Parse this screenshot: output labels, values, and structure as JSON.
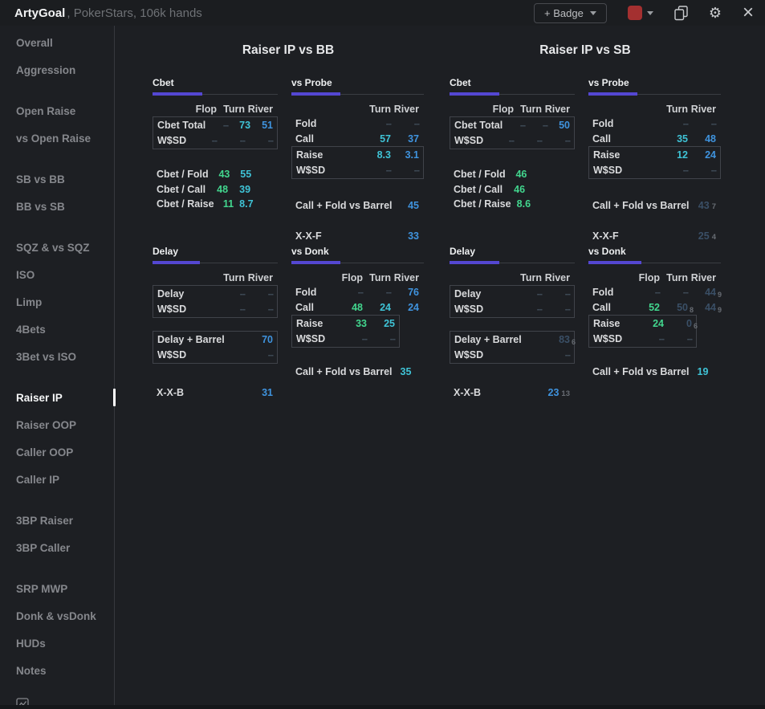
{
  "app": {
    "title": "ArtyGoal",
    "subtitle": ", PokerStars, 106k hands"
  },
  "topbar": {
    "badge_label": "+ Badge",
    "swatch_color": "#a43030",
    "gear_glyph": "⚙",
    "close_glyph": "×"
  },
  "colors": {
    "flop": "#42d68e",
    "turn": "#3fc3d6",
    "river": "#3f93de",
    "dash": "#3d4955",
    "dim": "#3a4f66",
    "sub": "#676c73"
  },
  "sidebar": {
    "active": "Raiser IP",
    "groups": [
      [
        "Overall",
        "Aggression"
      ],
      [
        "Open Raise",
        "vs Open Raise"
      ],
      [
        "SB vs BB",
        "BB vs SB"
      ],
      [
        "SQZ & vs SQZ",
        "ISO",
        "Limp",
        "4Bets",
        "3Bet vs ISO"
      ],
      [
        "Raiser IP",
        "Raiser OOP",
        "Caller OOP",
        "Caller IP"
      ],
      [
        "3BP Raiser",
        "3BP Caller"
      ],
      [
        "SRP MWP",
        "Donk & vsDonk",
        "HUDs",
        "Notes"
      ]
    ]
  },
  "panels": [
    {
      "title": "Raiser IP vs BB",
      "sections": [
        {
          "title": "Cbet",
          "bar_percent": 40,
          "columns": [
            "Flop",
            "Turn",
            "River"
          ],
          "blocks": [
            {
              "type": "box",
              "rows": [
                {
                  "label": "Cbet Total",
                  "cells": [
                    {
                      "v": "--",
                      "c": "dash"
                    },
                    {
                      "v": "73",
                      "c": "turn"
                    },
                    {
                      "v": "51",
                      "c": "river"
                    }
                  ]
                },
                {
                  "label": "W$SD",
                  "cells": [
                    {
                      "v": "--",
                      "c": "dash"
                    },
                    {
                      "v": "--",
                      "c": "dash"
                    },
                    {
                      "v": "--",
                      "c": "dash"
                    }
                  ]
                }
              ]
            },
            {
              "type": "plain",
              "gap": 22,
              "rows": [
                {
                  "label": "Cbet / Fold",
                  "cells": [
                    {
                      "v": "43",
                      "c": "flop"
                    },
                    {
                      "v": "55",
                      "c": "turn"
                    },
                    null
                  ]
                },
                {
                  "label": "Cbet / Call",
                  "cells": [
                    {
                      "v": "48",
                      "c": "flop"
                    },
                    {
                      "v": "39",
                      "c": "turn"
                    },
                    null
                  ]
                },
                {
                  "label": "Cbet / Raise",
                  "cells": [
                    {
                      "v": "11",
                      "c": "flop"
                    },
                    {
                      "v": "8.7",
                      "c": "turn"
                    },
                    null
                  ]
                }
              ]
            }
          ]
        },
        {
          "title": "vs Probe",
          "bar_percent": 37,
          "columns": [
            "Turn",
            "River"
          ],
          "blocks": [
            {
              "type": "plain",
              "rows": [
                {
                  "label": "Fold",
                  "cells": [
                    {
                      "v": "--",
                      "c": "dash"
                    },
                    {
                      "v": "--",
                      "c": "dash"
                    }
                  ]
                },
                {
                  "label": "Call",
                  "cells": [
                    {
                      "v": "57",
                      "c": "turn"
                    },
                    {
                      "v": "37",
                      "c": "river"
                    }
                  ]
                }
              ]
            },
            {
              "type": "box",
              "rows": [
                {
                  "label": "Raise",
                  "cells": [
                    {
                      "v": "8.3",
                      "c": "turn"
                    },
                    {
                      "v": "3.1",
                      "c": "river"
                    }
                  ]
                },
                {
                  "label": "W$SD",
                  "cells": [
                    {
                      "v": "--",
                      "c": "dash"
                    },
                    {
                      "v": "--",
                      "c": "dash"
                    }
                  ]
                }
              ]
            },
            {
              "type": "summary",
              "gap": 23,
              "label": "Call + Fold vs Barrel",
              "value": {
                "v": "45",
                "c": "river"
              }
            },
            {
              "type": "summary",
              "gap": 19,
              "label": "X-X-F",
              "value": {
                "v": "33",
                "c": "river"
              }
            }
          ]
        },
        {
          "title": "Delay",
          "bar_percent": 38,
          "columns": [
            "Turn",
            "River"
          ],
          "blocks": [
            {
              "type": "box",
              "rows": [
                {
                  "label": "Delay",
                  "cells": [
                    {
                      "v": "--",
                      "c": "dash"
                    },
                    {
                      "v": "--",
                      "c": "dash"
                    }
                  ]
                },
                {
                  "label": "W$SD",
                  "cells": [
                    {
                      "v": "--",
                      "c": "dash"
                    },
                    {
                      "v": "--",
                      "c": "dash"
                    }
                  ]
                }
              ]
            },
            {
              "type": "box",
              "gap": 16,
              "rows": [
                {
                  "label": "Delay + Barrel",
                  "cells": [
                    null,
                    {
                      "v": "70",
                      "c": "river"
                    }
                  ]
                },
                {
                  "label": "W$SD",
                  "cells": [
                    null,
                    {
                      "v": "--",
                      "c": "dash"
                    }
                  ]
                }
              ]
            },
            {
              "type": "summary",
              "gap": 26,
              "label": "X-X-B",
              "value": {
                "v": "31",
                "c": "river"
              }
            }
          ]
        },
        {
          "title": "vs Donk",
          "bar_percent": 37,
          "columns": [
            "Flop",
            "Turn",
            "River"
          ],
          "blocks": [
            {
              "type": "plain",
              "rows": [
                {
                  "label": "Fold",
                  "cells": [
                    {
                      "v": "--",
                      "c": "dash"
                    },
                    {
                      "v": "--",
                      "c": "dash"
                    },
                    {
                      "v": "76",
                      "c": "river"
                    }
                  ]
                },
                {
                  "label": "Call",
                  "cells": [
                    {
                      "v": "48",
                      "c": "flop"
                    },
                    {
                      "v": "24",
                      "c": "turn"
                    },
                    {
                      "v": "24",
                      "c": "river"
                    }
                  ]
                }
              ]
            },
            {
              "type": "box",
              "short": true,
              "rows": [
                {
                  "label": "Raise",
                  "cells": [
                    {
                      "v": "33",
                      "c": "flop"
                    },
                    {
                      "v": "25",
                      "c": "turn"
                    }
                  ]
                },
                {
                  "label": "W$SD",
                  "cells": [
                    {
                      "v": "--",
                      "c": "dash"
                    },
                    {
                      "v": "--",
                      "c": "dash"
                    }
                  ]
                }
              ]
            },
            {
              "type": "summary",
              "inline": true,
              "gap": 20,
              "label": "Call + Fold vs Barrel",
              "value": {
                "v": "35",
                "c": "turn"
              }
            }
          ]
        }
      ]
    },
    {
      "title": "Raiser IP vs SB",
      "sections": [
        {
          "title": "Cbet",
          "bar_percent": 40,
          "columns": [
            "Flop",
            "Turn",
            "River"
          ],
          "blocks": [
            {
              "type": "box",
              "rows": [
                {
                  "label": "Cbet Total",
                  "cells": [
                    {
                      "v": "--",
                      "c": "dash"
                    },
                    {
                      "v": "--",
                      "c": "dash"
                    },
                    {
                      "v": "50",
                      "c": "river"
                    }
                  ]
                },
                {
                  "label": "W$SD",
                  "cells": [
                    {
                      "v": "--",
                      "c": "dash"
                    },
                    {
                      "v": "--",
                      "c": "dash"
                    },
                    {
                      "v": "--",
                      "c": "dash"
                    }
                  ]
                }
              ]
            },
            {
              "type": "plain",
              "gap": 22,
              "rows": [
                {
                  "label": "Cbet / Fold",
                  "cells": [
                    {
                      "v": "46",
                      "c": "flop"
                    },
                    null,
                    null
                  ]
                },
                {
                  "label": "Cbet / Call",
                  "cells": [
                    {
                      "v": "46",
                      "c": "flop"
                    },
                    null,
                    null
                  ]
                },
                {
                  "label": "Cbet / Raise",
                  "cells": [
                    {
                      "v": "8.6",
                      "c": "flop"
                    },
                    null,
                    null
                  ]
                }
              ]
            }
          ]
        },
        {
          "title": "vs Probe",
          "bar_percent": 37,
          "columns": [
            "Turn",
            "River"
          ],
          "blocks": [
            {
              "type": "plain",
              "rows": [
                {
                  "label": "Fold",
                  "cells": [
                    {
                      "v": "--",
                      "c": "dash"
                    },
                    {
                      "v": "--",
                      "c": "dash"
                    }
                  ]
                },
                {
                  "label": "Call",
                  "cells": [
                    {
                      "v": "35",
                      "c": "turn"
                    },
                    {
                      "v": "48",
                      "c": "river"
                    }
                  ]
                }
              ]
            },
            {
              "type": "box",
              "rows": [
                {
                  "label": "Raise",
                  "cells": [
                    {
                      "v": "12",
                      "c": "turn"
                    },
                    {
                      "v": "24",
                      "c": "river"
                    }
                  ]
                },
                {
                  "label": "W$SD",
                  "cells": [
                    {
                      "v": "--",
                      "c": "dash"
                    },
                    {
                      "v": "--",
                      "c": "dash"
                    }
                  ]
                }
              ]
            },
            {
              "type": "summary",
              "gap": 23,
              "label": "Call + Fold vs Barrel",
              "value": {
                "v": "43",
                "c": "dim",
                "sub": "7"
              }
            },
            {
              "type": "summary",
              "gap": 19,
              "label": "X-X-F",
              "value": {
                "v": "25",
                "c": "dim",
                "sub": "4"
              }
            }
          ]
        },
        {
          "title": "Delay",
          "bar_percent": 40,
          "columns": [
            "Turn",
            "River"
          ],
          "blocks": [
            {
              "type": "box",
              "rows": [
                {
                  "label": "Delay",
                  "cells": [
                    {
                      "v": "--",
                      "c": "dash"
                    },
                    {
                      "v": "--",
                      "c": "dash"
                    }
                  ]
                },
                {
                  "label": "W$SD",
                  "cells": [
                    {
                      "v": "--",
                      "c": "dash"
                    },
                    {
                      "v": "--",
                      "c": "dash"
                    }
                  ]
                }
              ]
            },
            {
              "type": "box",
              "gap": 16,
              "rows": [
                {
                  "label": "Delay + Barrel",
                  "cells": [
                    null,
                    {
                      "v": "83",
                      "c": "dim",
                      "sub": "6"
                    }
                  ]
                },
                {
                  "label": "W$SD",
                  "cells": [
                    null,
                    {
                      "v": "--",
                      "c": "dash"
                    }
                  ]
                }
              ]
            },
            {
              "type": "summary",
              "gap": 26,
              "label": "X-X-B",
              "value": {
                "v": "23",
                "c": "river",
                "sub": "13"
              }
            }
          ]
        },
        {
          "title": "vs Donk",
          "bar_percent": 40,
          "columns": [
            "Flop",
            "Turn",
            "River"
          ],
          "blocks": [
            {
              "type": "plain",
              "rows": [
                {
                  "label": "Fold",
                  "cells": [
                    {
                      "v": "--",
                      "c": "dash"
                    },
                    {
                      "v": "--",
                      "c": "dash"
                    },
                    {
                      "v": "44",
                      "c": "dim",
                      "sub": "9"
                    }
                  ]
                },
                {
                  "label": "Call",
                  "cells": [
                    {
                      "v": "52",
                      "c": "flop"
                    },
                    {
                      "v": "50",
                      "c": "dim",
                      "sub": "8"
                    },
                    {
                      "v": "44",
                      "c": "dim",
                      "sub": "9"
                    }
                  ]
                }
              ]
            },
            {
              "type": "box",
              "short": true,
              "rows": [
                {
                  "label": "Raise",
                  "cells": [
                    {
                      "v": "24",
                      "c": "flop"
                    },
                    {
                      "v": "0",
                      "c": "dim",
                      "sub": "6"
                    }
                  ]
                },
                {
                  "label": "W$SD",
                  "cells": [
                    {
                      "v": "--",
                      "c": "dash"
                    },
                    {
                      "v": "--",
                      "c": "dash"
                    }
                  ]
                }
              ]
            },
            {
              "type": "summary",
              "inline": true,
              "gap": 20,
              "label": "Call + Fold vs Barrel",
              "value": {
                "v": "19",
                "c": "turn"
              }
            }
          ]
        }
      ]
    }
  ]
}
